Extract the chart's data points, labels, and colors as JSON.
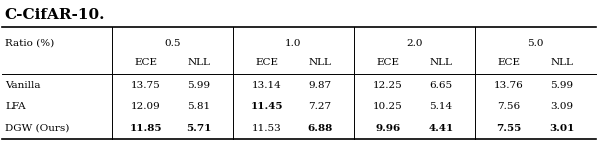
{
  "title": "C-CifAR-10.",
  "title_fontsize": 11,
  "rows": [
    {
      "method": "Vanilla",
      "values": [
        [
          "13.75",
          "5.99"
        ],
        [
          "13.14",
          "9.87"
        ],
        [
          "12.25",
          "6.65"
        ],
        [
          "13.76",
          "5.99"
        ]
      ],
      "bold": [
        [
          false,
          false
        ],
        [
          false,
          false
        ],
        [
          false,
          false
        ],
        [
          false,
          false
        ]
      ]
    },
    {
      "method": "LFA",
      "values": [
        [
          "12.09",
          "5.81"
        ],
        [
          "11.45",
          "7.27"
        ],
        [
          "10.25",
          "5.14"
        ],
        [
          "7.56",
          "3.09"
        ]
      ],
      "bold": [
        [
          false,
          false
        ],
        [
          true,
          false
        ],
        [
          false,
          false
        ],
        [
          false,
          false
        ]
      ]
    },
    {
      "method": "DGW (Ours)",
      "values": [
        [
          "11.85",
          "5.71"
        ],
        [
          "11.53",
          "6.88"
        ],
        [
          "9.96",
          "4.41"
        ],
        [
          "7.55",
          "3.01"
        ]
      ],
      "bold": [
        [
          true,
          true
        ],
        [
          false,
          true
        ],
        [
          true,
          true
        ],
        [
          true,
          true
        ]
      ]
    }
  ],
  "ratio_labels": [
    "0.5",
    "1.0",
    "2.0",
    "5.0"
  ],
  "background_color": "#ffffff",
  "text_color": "#000000",
  "font_size": 7.5,
  "header_font_size": 7.5,
  "line_color": "#000000",
  "thick_lw": 1.2,
  "thin_lw": 0.7,
  "sep_lw": 0.7
}
